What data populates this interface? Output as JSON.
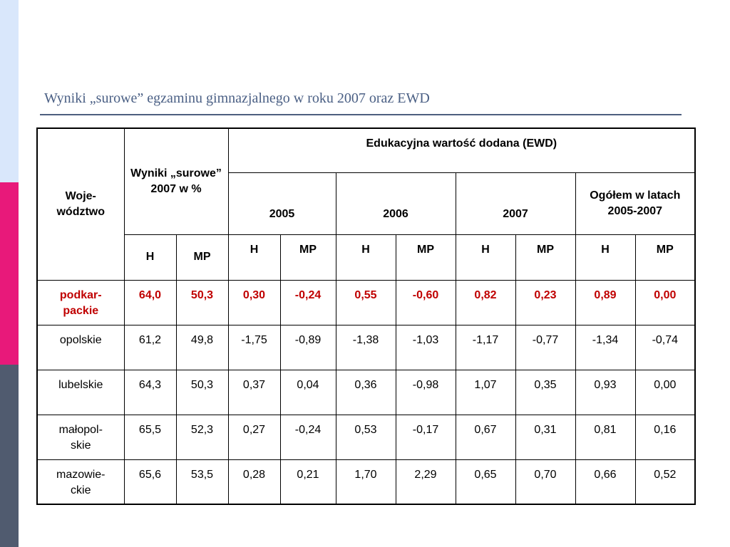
{
  "title": "Wyniki „surowe” egzaminu gimnazjalnego w roku 2007 oraz EWD",
  "colors": {
    "highlight_text": "#c00000",
    "title_text": "#4a5f84"
  },
  "table": {
    "header": {
      "region_label": "Woje-\nwództwo",
      "raw_label": "Wyniki „surowe” 2007 w %",
      "ewd_label": "Edukacyjna wartość dodana (EWD)",
      "years": [
        "2005",
        "2006",
        "2007",
        "Ogółem w latach 2005-2007"
      ],
      "sub": [
        "H",
        "MP",
        "H",
        "MP",
        "H",
        "MP",
        "H",
        "MP",
        "H",
        "MP"
      ]
    },
    "rows": [
      {
        "region": "podkar-\npackie",
        "values": [
          "64,0",
          "50,3",
          "0,30",
          "-0,24",
          "0,55",
          "-0,60",
          "0,82",
          "0,23",
          "0,89",
          "0,00"
        ]
      },
      {
        "region": "opolskie",
        "values": [
          "61,2",
          "49,8",
          "-1,75",
          "-0,89",
          "-1,38",
          "-1,03",
          "-1,17",
          "-0,77",
          "-1,34",
          "-0,74"
        ]
      },
      {
        "region": "lubelskie",
        "values": [
          "64,3",
          "50,3",
          "0,37",
          "0,04",
          "0,36",
          "-0,98",
          "1,07",
          "0,35",
          "0,93",
          "0,00"
        ]
      },
      {
        "region": "małopol-\nskie",
        "values": [
          "65,5",
          "52,3",
          "0,27",
          "-0,24",
          "0,53",
          "-0,17",
          "0,67",
          "0,31",
          "0,81",
          "0,16"
        ]
      },
      {
        "region": "mazowie-\nckie",
        "values": [
          "65,6",
          "53,5",
          "0,28",
          "0,21",
          "1,70",
          "2,29",
          "0,65",
          "0,70",
          "0,66",
          "0,52"
        ]
      }
    ]
  }
}
